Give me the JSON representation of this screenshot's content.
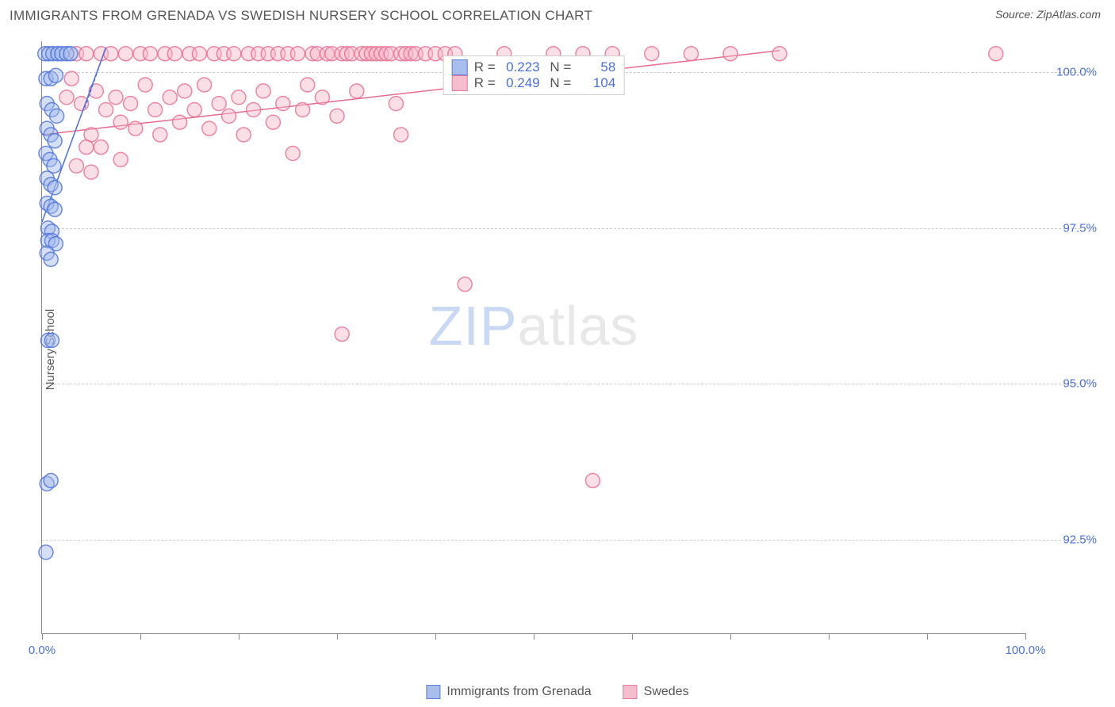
{
  "title": "IMMIGRANTS FROM GRENADA VS SWEDISH NURSERY SCHOOL CORRELATION CHART",
  "source": "Source: ZipAtlas.com",
  "watermark_a": "ZIP",
  "watermark_b": "atlas",
  "chart": {
    "type": "scatter",
    "xlim": [
      0,
      100
    ],
    "ylim": [
      91,
      100.5
    ],
    "y_axis_label": "Nursery School",
    "y_ticks": [
      {
        "v": 92.5,
        "label": "92.5%"
      },
      {
        "v": 95.0,
        "label": "95.0%"
      },
      {
        "v": 97.5,
        "label": "97.5%"
      },
      {
        "v": 100.0,
        "label": "100.0%"
      }
    ],
    "x_ticks": [
      0,
      10,
      20,
      30,
      40,
      50,
      60,
      70,
      80,
      90,
      100
    ],
    "x_tick_labels": {
      "left": "0.0%",
      "right": "100.0%"
    },
    "grid_color": "#cccccc",
    "background_color": "#ffffff",
    "marker_radius": 9,
    "marker_stroke_width": 1.5,
    "line_width": 1.5,
    "series": [
      {
        "name": "Immigrants from Grenada",
        "fill": "#9fb8ec",
        "fill_opacity": 0.45,
        "stroke": "#4a6fd8",
        "R": "0.223",
        "N": "58",
        "trend": {
          "x1": 0,
          "y1": 97.6,
          "x2": 6.5,
          "y2": 100.4
        },
        "dashed_ext": {
          "x1": 6.5,
          "y1": 100.4,
          "x2": 4.3,
          "y2": 99.4
        },
        "points": [
          [
            0.3,
            100.3
          ],
          [
            0.7,
            100.3
          ],
          [
            1.1,
            100.3
          ],
          [
            1.6,
            100.3
          ],
          [
            2.0,
            100.3
          ],
          [
            2.5,
            100.3
          ],
          [
            2.9,
            100.3
          ],
          [
            0.4,
            99.9
          ],
          [
            0.9,
            99.9
          ],
          [
            1.4,
            99.95
          ],
          [
            0.5,
            99.5
          ],
          [
            1.0,
            99.4
          ],
          [
            1.5,
            99.3
          ],
          [
            0.5,
            99.1
          ],
          [
            0.9,
            99.0
          ],
          [
            1.3,
            98.9
          ],
          [
            0.4,
            98.7
          ],
          [
            0.8,
            98.6
          ],
          [
            1.2,
            98.5
          ],
          [
            0.5,
            98.3
          ],
          [
            0.9,
            98.2
          ],
          [
            1.3,
            98.15
          ],
          [
            0.5,
            97.9
          ],
          [
            0.9,
            97.85
          ],
          [
            1.3,
            97.8
          ],
          [
            0.6,
            97.5
          ],
          [
            1.0,
            97.45
          ],
          [
            0.6,
            97.3
          ],
          [
            1.0,
            97.3
          ],
          [
            1.4,
            97.25
          ],
          [
            0.5,
            97.1
          ],
          [
            0.9,
            97.0
          ],
          [
            0.6,
            95.7
          ],
          [
            1.0,
            95.7
          ],
          [
            0.5,
            93.4
          ],
          [
            0.9,
            93.45
          ],
          [
            0.4,
            92.3
          ]
        ]
      },
      {
        "name": "Swedes",
        "fill": "#f5b8c9",
        "fill_opacity": 0.45,
        "stroke": "#e86a8e",
        "R": "0.249",
        "N": "104",
        "trend": {
          "x1": 0,
          "y1": 99.0,
          "x2": 75,
          "y2": 100.35
        },
        "points": [
          [
            2.5,
            99.6
          ],
          [
            3.0,
            99.9
          ],
          [
            3.5,
            100.3
          ],
          [
            4.0,
            99.5
          ],
          [
            4.5,
            100.3
          ],
          [
            5.0,
            99.0
          ],
          [
            5.5,
            99.7
          ],
          [
            6.0,
            100.3
          ],
          [
            6.5,
            99.4
          ],
          [
            7.0,
            100.3
          ],
          [
            7.5,
            99.6
          ],
          [
            8.0,
            99.2
          ],
          [
            8.5,
            100.3
          ],
          [
            9.0,
            99.5
          ],
          [
            9.5,
            99.1
          ],
          [
            10.0,
            100.3
          ],
          [
            10.5,
            99.8
          ],
          [
            11.0,
            100.3
          ],
          [
            11.5,
            99.4
          ],
          [
            12.0,
            99.0
          ],
          [
            12.5,
            100.3
          ],
          [
            13.0,
            99.6
          ],
          [
            13.5,
            100.3
          ],
          [
            14.0,
            99.2
          ],
          [
            14.5,
            99.7
          ],
          [
            15.0,
            100.3
          ],
          [
            15.5,
            99.4
          ],
          [
            16.0,
            100.3
          ],
          [
            16.5,
            99.8
          ],
          [
            17.0,
            99.1
          ],
          [
            17.5,
            100.3
          ],
          [
            18.0,
            99.5
          ],
          [
            18.5,
            100.3
          ],
          [
            19.0,
            99.3
          ],
          [
            19.5,
            100.3
          ],
          [
            20.0,
            99.6
          ],
          [
            20.5,
            99.0
          ],
          [
            21.0,
            100.3
          ],
          [
            21.5,
            99.4
          ],
          [
            22.0,
            100.3
          ],
          [
            22.5,
            99.7
          ],
          [
            23.0,
            100.3
          ],
          [
            23.5,
            99.2
          ],
          [
            24.0,
            100.3
          ],
          [
            24.5,
            99.5
          ],
          [
            25.0,
            100.3
          ],
          [
            25.5,
            98.7
          ],
          [
            26.0,
            100.3
          ],
          [
            26.5,
            99.4
          ],
          [
            27.0,
            99.8
          ],
          [
            27.5,
            100.3
          ],
          [
            28.0,
            100.3
          ],
          [
            28.5,
            99.6
          ],
          [
            29.0,
            100.3
          ],
          [
            29.5,
            100.3
          ],
          [
            30.0,
            99.3
          ],
          [
            30.5,
            100.3
          ],
          [
            31.0,
            100.3
          ],
          [
            31.5,
            100.3
          ],
          [
            32.0,
            99.7
          ],
          [
            32.5,
            100.3
          ],
          [
            33.0,
            100.3
          ],
          [
            33.5,
            100.3
          ],
          [
            34.0,
            100.3
          ],
          [
            34.5,
            100.3
          ],
          [
            35.0,
            100.3
          ],
          [
            35.5,
            100.3
          ],
          [
            36.0,
            99.5
          ],
          [
            36.5,
            100.3
          ],
          [
            37.0,
            100.3
          ],
          [
            37.5,
            100.3
          ],
          [
            38.0,
            100.3
          ],
          [
            39.0,
            100.3
          ],
          [
            40.0,
            100.3
          ],
          [
            41.0,
            100.3
          ],
          [
            42.0,
            100.3
          ],
          [
            43.0,
            99.8
          ],
          [
            4.5,
            98.8
          ],
          [
            6.0,
            98.8
          ],
          [
            8.0,
            98.6
          ],
          [
            3.5,
            98.5
          ],
          [
            5.0,
            98.4
          ],
          [
            30.5,
            95.8
          ],
          [
            36.5,
            99.0
          ],
          [
            43.0,
            96.6
          ],
          [
            47.0,
            100.3
          ],
          [
            50.0,
            99.8
          ],
          [
            52.0,
            100.3
          ],
          [
            55.0,
            100.3
          ],
          [
            58.0,
            100.3
          ],
          [
            56.0,
            93.45
          ],
          [
            62.0,
            100.3
          ],
          [
            66.0,
            100.3
          ],
          [
            70.0,
            100.3
          ],
          [
            75.0,
            100.3
          ],
          [
            97.0,
            100.3
          ]
        ]
      }
    ]
  },
  "legend_bottom": {
    "series1_label": "Immigrants from Grenada",
    "series2_label": "Swedes"
  }
}
